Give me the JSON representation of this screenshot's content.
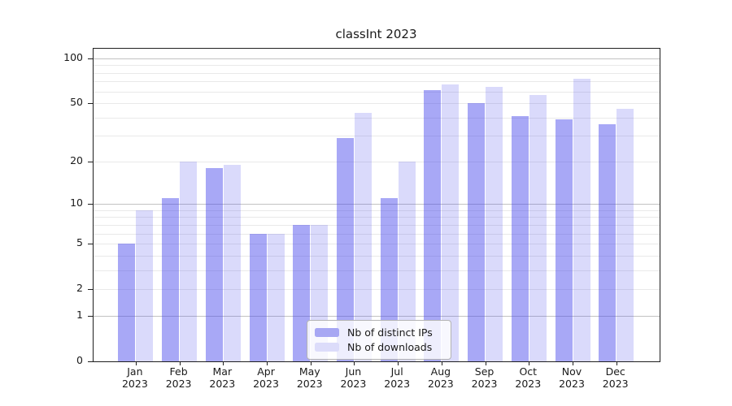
{
  "chart_data": {
    "type": "bar",
    "title": "classInt 2023",
    "y_scale": "symlog",
    "x_categories": [
      "Jan",
      "Feb",
      "Mar",
      "Apr",
      "May",
      "Jun",
      "Jul",
      "Aug",
      "Sep",
      "Oct",
      "Nov",
      "Dec"
    ],
    "x_year_suffix": "2023",
    "y_tick_labels": [
      0,
      1,
      2,
      5,
      10,
      20,
      50,
      100
    ],
    "y_major_grid": [
      1,
      10,
      100
    ],
    "y_minor_grid": [
      2,
      3,
      4,
      5,
      6,
      7,
      8,
      9,
      20,
      30,
      40,
      50,
      60,
      70,
      80,
      90
    ],
    "ylim": [
      0,
      115
    ],
    "grid": true,
    "legend_position": "lower center",
    "series": [
      {
        "name": "Nb of distinct IPs",
        "fill": "rgba(70,70,235,0.47)",
        "swatch": "#a7a7f3",
        "values": [
          5,
          11,
          18,
          6,
          7,
          29,
          11,
          61,
          50,
          41,
          39,
          36
        ]
      },
      {
        "name": "Nb of downloads",
        "fill": "rgba(70,70,235,0.20)",
        "swatch": "#dcdcfa",
        "values": [
          9,
          20,
          19,
          6,
          7,
          43,
          20,
          67,
          64,
          57,
          73,
          46
        ]
      }
    ],
    "colors": {
      "bar_dark": "#a8a8f5",
      "bar_light": "#dbdbf9",
      "grid_major": "#c2c2c2",
      "grid_minor": "#e9e9e9",
      "spine": "#1f1f1f"
    }
  }
}
